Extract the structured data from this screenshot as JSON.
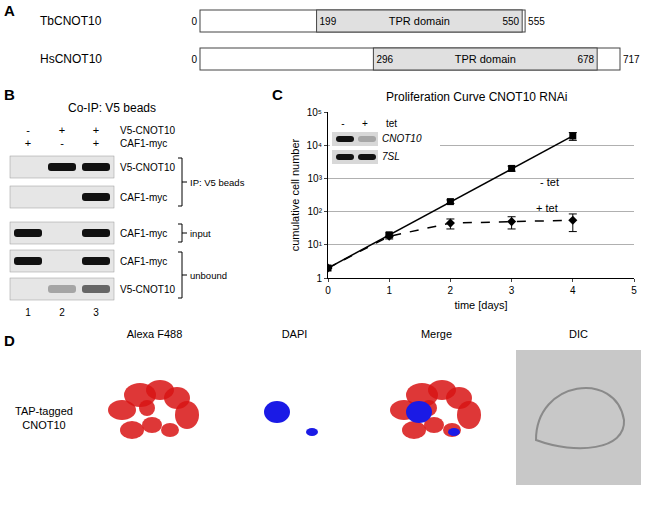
{
  "panel_a": {
    "label": "A",
    "proteins": [
      {
        "name": "TbCNOT10",
        "start": 0,
        "end": 555,
        "domain": {
          "name": "TPR domain",
          "start": 199,
          "end": 550
        }
      },
      {
        "name": "HsCNOT10",
        "start": 0,
        "end": 717,
        "domain": {
          "name": "TPR domain",
          "start": 296,
          "end": 678
        }
      }
    ]
  },
  "panel_b": {
    "label": "B",
    "title": "Co-IP: V5 beads",
    "conditions": [
      {
        "name": "V5-CNOT10",
        "lanes": [
          "-",
          "+",
          "+"
        ]
      },
      {
        "name": "CAF1-myc",
        "lanes": [
          "+",
          "-",
          "+"
        ]
      }
    ],
    "blots": [
      {
        "name": "V5-CNOT10",
        "group": "IP: V5 beads",
        "bands": [
          0,
          1,
          1
        ]
      },
      {
        "name": "CAF1-myc",
        "group": "IP: V5 beads",
        "bands": [
          0,
          0,
          1
        ]
      },
      {
        "name": "CAF1-myc",
        "group": "input",
        "bands": [
          1,
          0,
          1
        ]
      },
      {
        "name": "CAF1-myc",
        "group": "unbound",
        "bands": [
          1,
          0,
          1
        ]
      },
      {
        "name": "V5-CNOT10",
        "group": "unbound",
        "bands": [
          0,
          0.3,
          0.6
        ]
      }
    ],
    "lanes": [
      1,
      2,
      3
    ]
  },
  "chart_data": {
    "label": "C",
    "type": "line",
    "title": "Proliferation Curve CNOT10 RNAi",
    "xlabel": "time [days]",
    "ylabel": "cumulative cell number",
    "xlim": [
      0,
      5
    ],
    "xticks": [
      0,
      1,
      2,
      3,
      4,
      5
    ],
    "ylim": [
      1,
      100000
    ],
    "yticks": [
      1,
      {
        "value": 10,
        "label": "10¹"
      },
      {
        "value": 100,
        "label": "10²"
      },
      {
        "value": 1000,
        "label": "10³"
      },
      {
        "value": 10000,
        "label": "10⁴"
      },
      {
        "value": 100000,
        "label": "10⁵"
      }
    ],
    "log": "y",
    "grid": true,
    "series": [
      {
        "name": "- tet",
        "color": "#000000",
        "marker": "square",
        "line_style": "solid",
        "x": [
          0,
          1,
          2,
          3,
          4
        ],
        "values": [
          2,
          20,
          200,
          2000,
          19000
        ],
        "error": [
          0,
          3,
          25,
          350,
          5000
        ]
      },
      {
        "name": "+ tet",
        "color": "#000000",
        "marker": "diamond",
        "line_style": "dash",
        "x": [
          0,
          1,
          2,
          3,
          4
        ],
        "values": [
          2,
          18,
          45,
          50,
          55
        ],
        "error": [
          0,
          3,
          15,
          20,
          30
        ]
      }
    ],
    "inset": {
      "header": "tet",
      "lanes": [
        "-",
        "+"
      ],
      "blots": [
        {
          "name": "CNOT10",
          "bands": [
            1,
            0.25
          ]
        },
        {
          "name": "7SL",
          "bands": [
            1,
            1
          ]
        }
      ]
    }
  },
  "panel_d": {
    "label": "D",
    "row_label": "TAP-tagged CNOT10",
    "images": [
      "Alexa F488",
      "DAPI",
      "Merge",
      "DIC"
    ]
  }
}
